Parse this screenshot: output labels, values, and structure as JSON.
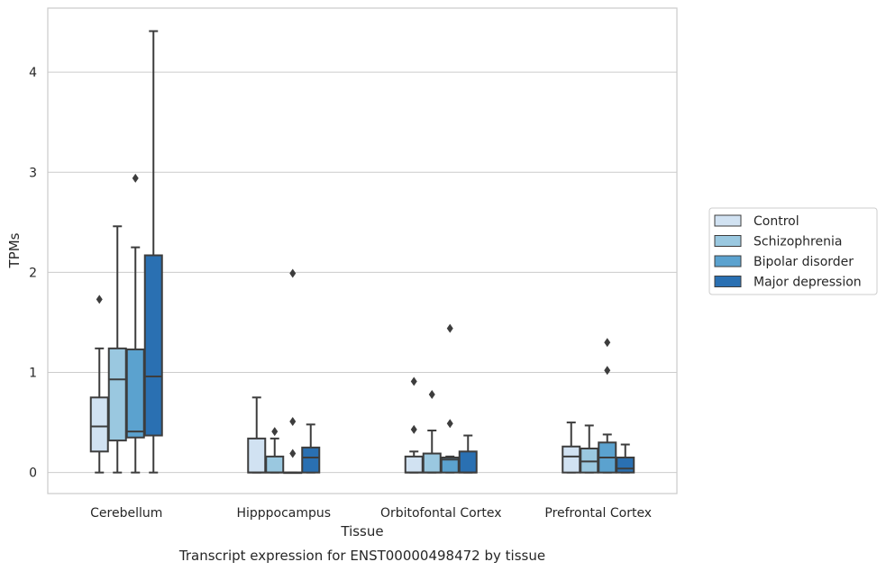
{
  "chart_data": {
    "type": "boxplot",
    "caption": "Transcript expression for ENST00000498472 by tissue",
    "xlabel": "Tissue",
    "ylabel": "TPMs",
    "ylim": [
      -0.21,
      4.64
    ],
    "yticks": [
      0,
      1,
      2,
      3,
      4
    ],
    "categories": [
      "Cerebellum",
      "Hipppocampus",
      "Orbitofontal Cortex",
      "Prefrontal Cortex"
    ],
    "grid": true,
    "legend_position": "right",
    "series": [
      {
        "name": "Control",
        "color": "#d1e2f2",
        "boxes": [
          {
            "whislo": 0,
            "q1": 0.21,
            "med": 0.46,
            "q3": 0.75,
            "whishi": 1.24,
            "fliers": [
              1.73
            ]
          },
          {
            "whislo": 0,
            "q1": 0,
            "med": 0,
            "q3": 0.34,
            "whishi": 0.75,
            "fliers": []
          },
          {
            "whislo": 0,
            "q1": 0,
            "med": 0,
            "q3": 0.16,
            "whishi": 0.21,
            "fliers": [
              0.43,
              0.91
            ]
          },
          {
            "whislo": 0,
            "q1": 0,
            "med": 0.16,
            "q3": 0.26,
            "whishi": 0.5,
            "fliers": []
          }
        ]
      },
      {
        "name": "Schizophrenia",
        "color": "#9ac8e0",
        "boxes": [
          {
            "whislo": 0,
            "q1": 0.32,
            "med": 0.93,
            "q3": 1.24,
            "whishi": 2.46,
            "fliers": []
          },
          {
            "whislo": 0,
            "q1": 0,
            "med": 0,
            "q3": 0.16,
            "whishi": 0.34,
            "fliers": [
              0.41
            ]
          },
          {
            "whislo": 0,
            "q1": 0,
            "med": 0,
            "q3": 0.19,
            "whishi": 0.42,
            "fliers": [
              0.78
            ]
          },
          {
            "whislo": 0,
            "q1": 0,
            "med": 0.11,
            "q3": 0.24,
            "whishi": 0.47,
            "fliers": []
          }
        ]
      },
      {
        "name": "Bipolar disorder",
        "color": "#5ba2cf",
        "boxes": [
          {
            "whislo": 0,
            "q1": 0.35,
            "med": 0.41,
            "q3": 1.23,
            "whishi": 2.25,
            "fliers": [
              2.94
            ]
          },
          {
            "whislo": 0,
            "q1": 0,
            "med": 0,
            "q3": 0,
            "whishi": 0,
            "fliers": [
              0.19,
              0.51,
              1.99
            ]
          },
          {
            "whislo": 0,
            "q1": 0,
            "med": 0.13,
            "q3": 0.15,
            "whishi": 0.16,
            "fliers": [
              0.49,
              1.44
            ]
          },
          {
            "whislo": 0,
            "q1": 0,
            "med": 0.15,
            "q3": 0.3,
            "whishi": 0.38,
            "fliers": [
              1.02,
              1.3
            ]
          }
        ]
      },
      {
        "name": "Major depression",
        "color": "#2a70b2",
        "boxes": [
          {
            "whislo": 0,
            "q1": 0.37,
            "med": 0.96,
            "q3": 2.17,
            "whishi": 4.41,
            "fliers": []
          },
          {
            "whislo": 0,
            "q1": 0,
            "med": 0.15,
            "q3": 0.25,
            "whishi": 0.48,
            "fliers": []
          },
          {
            "whislo": 0,
            "q1": 0,
            "med": 0,
            "q3": 0.21,
            "whishi": 0.37,
            "fliers": []
          },
          {
            "whislo": 0,
            "q1": 0,
            "med": 0.04,
            "q3": 0.15,
            "whishi": 0.28,
            "fliers": []
          }
        ]
      }
    ]
  }
}
